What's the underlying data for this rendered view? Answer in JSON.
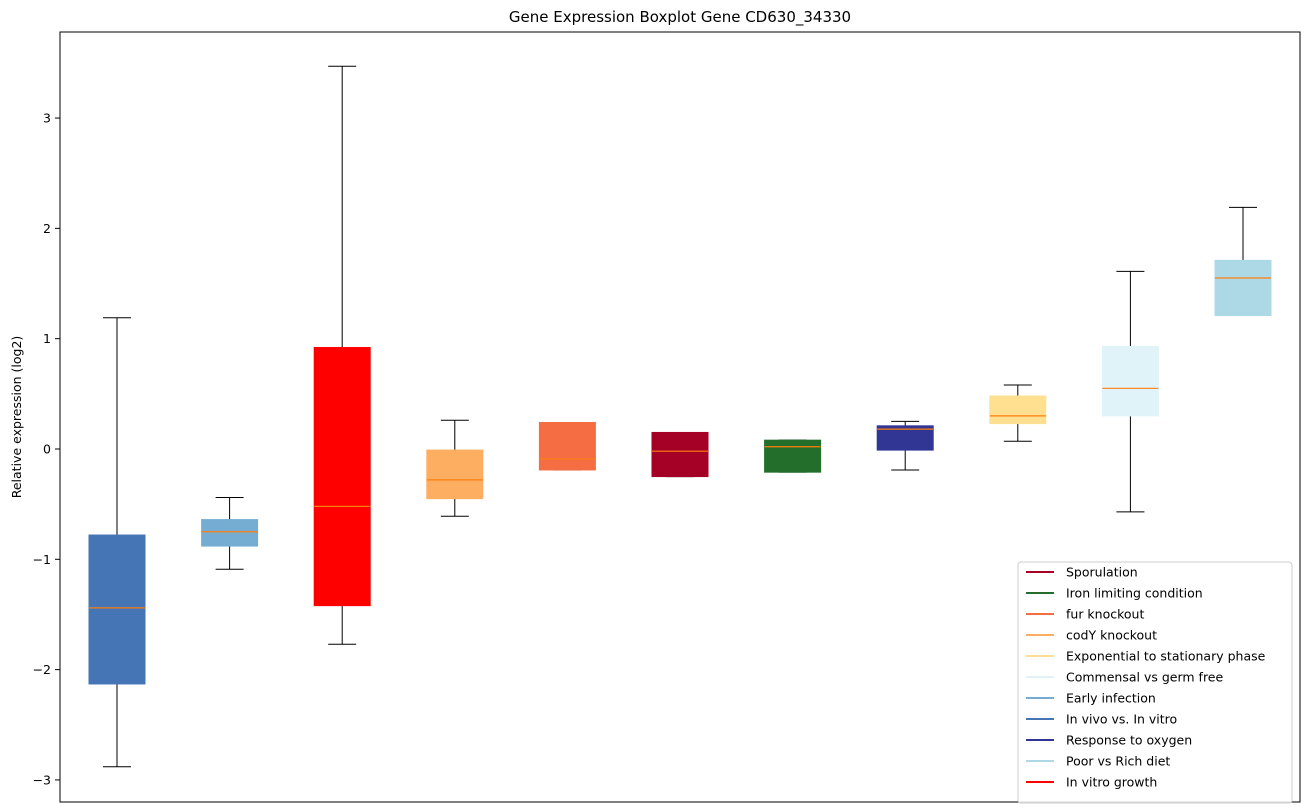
{
  "chart_data": {
    "type": "boxplot",
    "title": "Gene Expression Boxplot Gene CD630_34330",
    "xlabel": "",
    "ylabel": "Relative expression (log2)",
    "ylim": [
      -3.2,
      3.78
    ],
    "yticks": [
      -3,
      -2,
      -1,
      0,
      1,
      2,
      3
    ],
    "ytick_labels": [
      "−3",
      "−2",
      "−1",
      "0",
      "1",
      "2",
      "3"
    ],
    "grid": false,
    "median_color": "#ff7f0e",
    "legend_position": "lower-right",
    "boxes": [
      {
        "name": "In vivo vs. In vitro",
        "color": "#4575b4",
        "whislo": -2.88,
        "q1": -2.13,
        "med": -1.44,
        "q3": -0.78,
        "whishi": 1.19
      },
      {
        "name": "Early infection",
        "color": "#74add1",
        "whislo": -1.09,
        "q1": -0.88,
        "med": -0.75,
        "q3": -0.64,
        "whishi": -0.44
      },
      {
        "name": "In vitro growth",
        "color": "#ff0000",
        "whislo": -1.77,
        "q1": -1.42,
        "med": -0.52,
        "q3": 0.92,
        "whishi": 3.47
      },
      {
        "name": "codY knockout",
        "color": "#fdae61",
        "whislo": -0.61,
        "q1": -0.45,
        "med": -0.28,
        "q3": -0.01,
        "whishi": 0.26
      },
      {
        "name": "fur knockout",
        "color": "#f46d43",
        "whislo": -0.19,
        "q1": -0.19,
        "med": -0.09,
        "q3": 0.24,
        "whishi": 0.24
      },
      {
        "name": "Sporulation",
        "color": "#a50026",
        "whislo": -0.25,
        "q1": -0.25,
        "med": -0.02,
        "q3": 0.15,
        "whishi": 0.15
      },
      {
        "name": "Iron limiting condition",
        "color": "#226e2a",
        "whislo": -0.21,
        "q1": -0.21,
        "med": 0.02,
        "q3": 0.08,
        "whishi": 0.08
      },
      {
        "name": "Response to oxygen",
        "color": "#313695",
        "whislo": -0.19,
        "q1": -0.01,
        "med": 0.18,
        "q3": 0.21,
        "whishi": 0.25
      },
      {
        "name": "Exponential to stationary phase",
        "color": "#fee090",
        "whislo": 0.07,
        "q1": 0.23,
        "med": 0.3,
        "q3": 0.48,
        "whishi": 0.58
      },
      {
        "name": "Commensal vs germ free",
        "color": "#e0f3f8",
        "whislo": -0.57,
        "q1": 0.3,
        "med": 0.55,
        "q3": 0.93,
        "whishi": 1.61
      },
      {
        "name": "Poor vs Rich diet",
        "color": "#add8e6",
        "whislo": 1.21,
        "q1": 1.21,
        "med": 1.55,
        "q3": 1.71,
        "whishi": 2.19
      }
    ],
    "legend": [
      {
        "label": "Sporulation",
        "color": "#a50026"
      },
      {
        "label": "Iron limiting condition",
        "color": "#226e2a"
      },
      {
        "label": "fur knockout",
        "color": "#f46d43"
      },
      {
        "label": "codY knockout",
        "color": "#fdae61"
      },
      {
        "label": "Exponential to stationary phase",
        "color": "#fee090"
      },
      {
        "label": "Commensal vs germ free",
        "color": "#e0f3f8"
      },
      {
        "label": "Early infection",
        "color": "#74add1"
      },
      {
        "label": "In vivo vs. In vitro",
        "color": "#4575b4"
      },
      {
        "label": "Response to oxygen",
        "color": "#313695"
      },
      {
        "label": "Poor vs Rich diet",
        "color": "#add8e6"
      },
      {
        "label": "In vitro growth",
        "color": "#ff0000"
      }
    ]
  }
}
